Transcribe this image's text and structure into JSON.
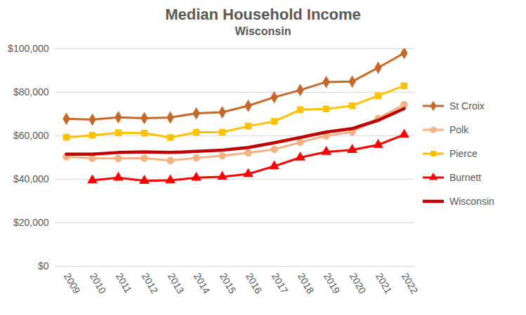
{
  "chart_data": {
    "type": "line",
    "title": "Median Household Income",
    "subtitle": "Wisconsin",
    "categories": [
      "2009",
      "2010",
      "2011",
      "2012",
      "2013",
      "2014",
      "2015",
      "2016",
      "2017",
      "2018",
      "2019",
      "2020",
      "2021",
      "2022"
    ],
    "series": [
      {
        "name": "St Croix",
        "color": "#C5692B",
        "marker": "diamond",
        "line_style": "solid",
        "values": [
          67800,
          67400,
          68500,
          68100,
          68400,
          70300,
          70800,
          73800,
          77700,
          81000,
          84700,
          84900,
          91300,
          98000
        ]
      },
      {
        "name": "Polk",
        "color": "#F4B183",
        "marker": "circle",
        "line_style": "solid",
        "values": [
          50400,
          49700,
          49600,
          49700,
          48600,
          49800,
          50800,
          52200,
          53700,
          57000,
          60000,
          61800,
          68000,
          74300
        ]
      },
      {
        "name": "Pierce",
        "color": "#FFC000",
        "marker": "square",
        "line_style": "solid",
        "values": [
          59300,
          60200,
          61400,
          61200,
          59200,
          61600,
          61600,
          64400,
          66600,
          72000,
          72300,
          73800,
          78400,
          83000
        ]
      },
      {
        "name": "Burnett",
        "color": "#FF0000",
        "marker": "triangle",
        "line_style": "solid",
        "values": [
          null,
          39500,
          40700,
          39300,
          39500,
          40700,
          41100,
          42400,
          46000,
          50000,
          52600,
          53500,
          55800,
          60500
        ]
      },
      {
        "name": "Wisconsin",
        "color": "#C00000",
        "marker": "none",
        "line_style": "solid",
        "values": [
          51500,
          51500,
          52300,
          52600,
          52300,
          52800,
          53400,
          54600,
          56800,
          59200,
          61700,
          63300,
          67100,
          72500
        ]
      }
    ],
    "ylim": [
      0,
      100000
    ],
    "yticks": [
      {
        "value": 0,
        "label": "$0"
      },
      {
        "value": 20000,
        "label": "$20,000"
      },
      {
        "value": 40000,
        "label": "$40,000"
      },
      {
        "value": 60000,
        "label": "$60,000"
      },
      {
        "value": 80000,
        "label": "$80,000"
      },
      {
        "value": 100000,
        "label": "$100,000"
      }
    ],
    "grid": true,
    "legend": "right"
  }
}
